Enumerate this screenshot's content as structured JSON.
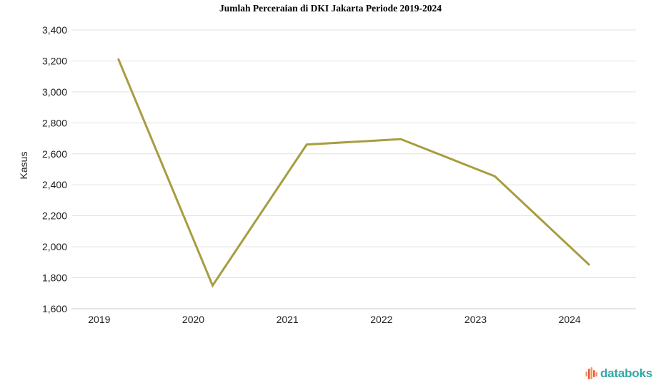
{
  "page": {
    "background": "#FFFFFF"
  },
  "chart_data": {
    "type": "line",
    "title": "Jumlah Perceraian di DKI Jakarta Periode 2019-2024",
    "xlabel": "",
    "ylabel": "Kasus",
    "categories": [
      "2019",
      "2020",
      "2021",
      "2022",
      "2023",
      "2024"
    ],
    "series": [
      {
        "name": "Kasus",
        "values": [
          3210,
          1750,
          2660,
          2695,
          2455,
          1885
        ],
        "color": "#A79D40"
      }
    ],
    "ylim": [
      1600,
      3400
    ],
    "ytick_step": 200,
    "ytick_labels": [
      "1,600",
      "1,800",
      "2,000",
      "2,200",
      "2,400",
      "2,600",
      "2,800",
      "3,000",
      "3,200",
      "3,400"
    ],
    "grid": true,
    "legend": "none",
    "grid_color": "#E0E0E0",
    "axis_line_color": "#CCCCCC",
    "tick_label_color": "#222222",
    "title_color": "#000000"
  },
  "branding": {
    "wordmark": "databoks",
    "wordmark_color": "#2FA8A4",
    "icon": "databoks-bars-icon",
    "icon_bar_colors": [
      "#F59B53",
      "#E8594A",
      "#F59B53",
      "#E8594A",
      "#F59B53"
    ]
  }
}
